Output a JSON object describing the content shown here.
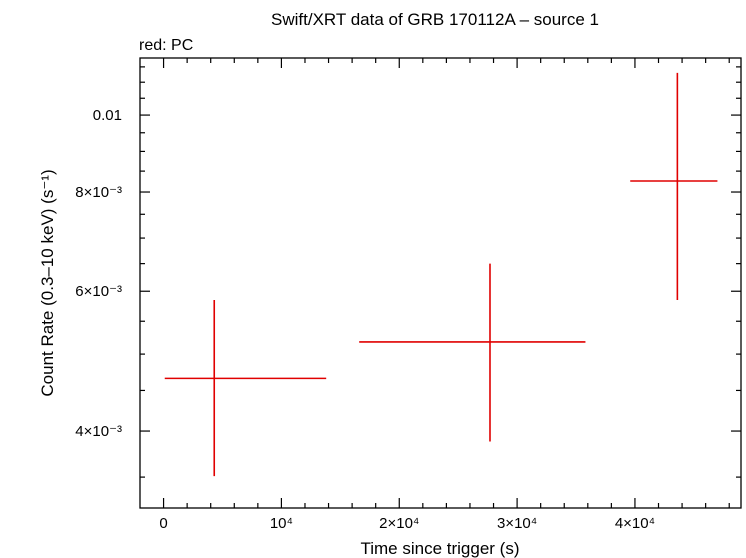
{
  "chart_data": {
    "type": "scatter",
    "title": "Swift/XRT data of GRB 170112A – source 1",
    "legend_text": "red: PC",
    "xlabel": "Time since trigger (s)",
    "ylabel": "Count Rate (0.3–10 keV) (s⁻¹)",
    "xlim": [
      -2000,
      49000
    ],
    "ylim": [
      0.0032,
      0.0118
    ],
    "y_scale": "log",
    "x_ticks": [
      {
        "value": 0,
        "label": "0"
      },
      {
        "value": 10000,
        "label": "10⁴"
      },
      {
        "value": 20000,
        "label": "2×10⁴"
      },
      {
        "value": 30000,
        "label": "3×10⁴"
      },
      {
        "value": 40000,
        "label": "4×10⁴"
      }
    ],
    "y_ticks": [
      {
        "value": 0.004,
        "label": "4×10⁻³"
      },
      {
        "value": 0.006,
        "label": "6×10⁻³"
      },
      {
        "value": 0.008,
        "label": "8×10⁻³"
      },
      {
        "value": 0.01,
        "label": "0.01"
      }
    ],
    "series": [
      {
        "color": "#e00000",
        "points": [
          {
            "x": 4300,
            "xlo": 100,
            "xhi": 13800,
            "y": 0.00466,
            "ylo": 0.00351,
            "yhi": 0.00585
          },
          {
            "x": 27700,
            "xlo": 16600,
            "xhi": 35800,
            "y": 0.00518,
            "ylo": 0.00388,
            "yhi": 0.0065
          },
          {
            "x": 43600,
            "xlo": 39600,
            "xhi": 47000,
            "y": 0.00826,
            "ylo": 0.00585,
            "yhi": 0.0113
          }
        ]
      }
    ],
    "colors": {
      "data": "#e00000",
      "axes": "#000000"
    }
  }
}
